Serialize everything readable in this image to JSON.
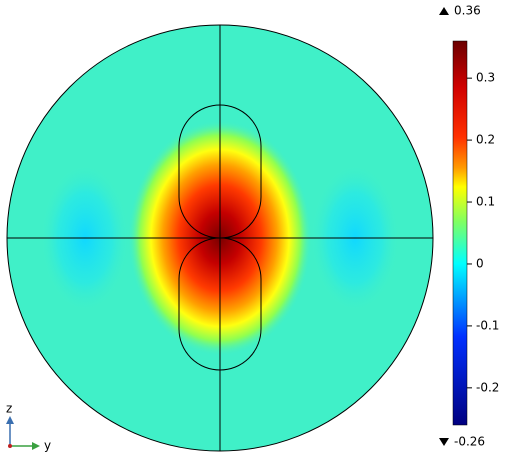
{
  "chart_data": {
    "type": "field",
    "colorbar": {
      "min": -0.26,
      "max": 0.36,
      "ticks": [
        0.3,
        0.2,
        0.1,
        0,
        -0.1,
        -0.2
      ]
    },
    "axes": {
      "vertical": "z",
      "horizontal": "y"
    }
  }
}
